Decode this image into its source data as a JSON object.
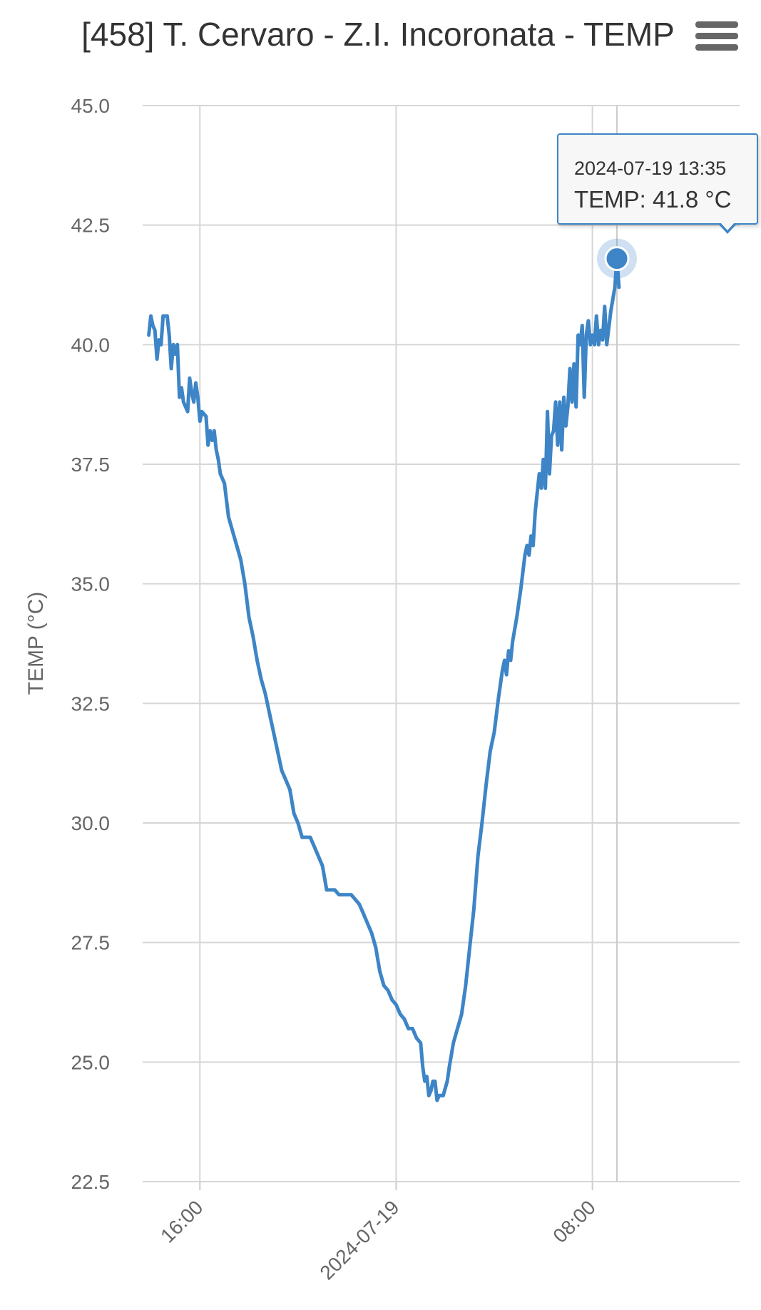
{
  "chart_data": {
    "type": "line",
    "title": "[458] T. Cervaro - Z.I. Incoronata - TEMP",
    "xlabel": "",
    "ylabel": "TEMP (°C)",
    "ylim": [
      22.5,
      45.0
    ],
    "y_ticks": [
      "45.0",
      "42.5",
      "40.0",
      "37.5",
      "35.0",
      "32.5",
      "30.0",
      "27.5",
      "25.0",
      "22.5"
    ],
    "x_ticks": [
      {
        "label": "16:00",
        "x": "2024-07-18 16:00"
      },
      {
        "label": "2024-07-19",
        "x": "2024-07-19 00:00"
      },
      {
        "label": "08:00",
        "x": "2024-07-19 08:00"
      }
    ],
    "xlim": [
      "2024-07-18 13:40",
      "2024-07-19 14:00"
    ],
    "grid": true,
    "legend": "none",
    "series": [
      {
        "color": "#3d85c6",
        "points": [
          [
            "2024-07-18 13:55",
            40.2
          ],
          [
            "2024-07-18 14:00",
            40.6
          ],
          [
            "2024-07-18 14:05",
            40.4
          ],
          [
            "2024-07-18 14:10",
            40.3
          ],
          [
            "2024-07-18 14:15",
            39.7
          ],
          [
            "2024-07-18 14:20",
            40.1
          ],
          [
            "2024-07-18 14:25",
            40.0
          ],
          [
            "2024-07-18 14:30",
            40.6
          ],
          [
            "2024-07-18 14:40",
            40.6
          ],
          [
            "2024-07-18 14:45",
            40.2
          ],
          [
            "2024-07-18 14:50",
            39.5
          ],
          [
            "2024-07-18 14:55",
            40.0
          ],
          [
            "2024-07-18 15:00",
            39.8
          ],
          [
            "2024-07-18 15:05",
            40.0
          ],
          [
            "2024-07-18 15:10",
            38.9
          ],
          [
            "2024-07-18 15:15",
            39.1
          ],
          [
            "2024-07-18 15:20",
            38.8
          ],
          [
            "2024-07-18 15:30",
            38.6
          ],
          [
            "2024-07-18 15:35",
            39.3
          ],
          [
            "2024-07-18 15:40",
            39.0
          ],
          [
            "2024-07-18 15:45",
            38.8
          ],
          [
            "2024-07-18 15:50",
            39.2
          ],
          [
            "2024-07-18 15:55",
            38.9
          ],
          [
            "2024-07-18 16:00",
            38.4
          ],
          [
            "2024-07-18 16:05",
            38.6
          ],
          [
            "2024-07-18 16:15",
            38.5
          ],
          [
            "2024-07-18 16:20",
            37.9
          ],
          [
            "2024-07-18 16:25",
            38.2
          ],
          [
            "2024-07-18 16:30",
            38.0
          ],
          [
            "2024-07-18 16:35",
            38.2
          ],
          [
            "2024-07-18 16:40",
            37.8
          ],
          [
            "2024-07-18 16:45",
            37.6
          ],
          [
            "2024-07-18 16:50",
            37.3
          ],
          [
            "2024-07-18 17:00",
            37.1
          ],
          [
            "2024-07-18 17:10",
            36.4
          ],
          [
            "2024-07-18 17:20",
            36.1
          ],
          [
            "2024-07-18 17:30",
            35.8
          ],
          [
            "2024-07-18 17:40",
            35.5
          ],
          [
            "2024-07-18 17:50",
            35.0
          ],
          [
            "2024-07-18 18:00",
            34.3
          ],
          [
            "2024-07-18 18:10",
            33.9
          ],
          [
            "2024-07-18 18:20",
            33.4
          ],
          [
            "2024-07-18 18:30",
            33.0
          ],
          [
            "2024-07-18 18:40",
            32.7
          ],
          [
            "2024-07-18 18:50",
            32.3
          ],
          [
            "2024-07-18 19:00",
            31.9
          ],
          [
            "2024-07-18 19:10",
            31.5
          ],
          [
            "2024-07-18 19:20",
            31.1
          ],
          [
            "2024-07-18 19:30",
            30.9
          ],
          [
            "2024-07-18 19:40",
            30.7
          ],
          [
            "2024-07-18 19:50",
            30.2
          ],
          [
            "2024-07-18 20:00",
            30.0
          ],
          [
            "2024-07-18 20:10",
            29.7
          ],
          [
            "2024-07-18 20:30",
            29.7
          ],
          [
            "2024-07-18 20:40",
            29.5
          ],
          [
            "2024-07-18 20:50",
            29.3
          ],
          [
            "2024-07-18 21:00",
            29.1
          ],
          [
            "2024-07-18 21:10",
            28.6
          ],
          [
            "2024-07-18 21:30",
            28.6
          ],
          [
            "2024-07-18 21:40",
            28.5
          ],
          [
            "2024-07-18 22:10",
            28.5
          ],
          [
            "2024-07-18 22:20",
            28.4
          ],
          [
            "2024-07-18 22:30",
            28.3
          ],
          [
            "2024-07-18 22:40",
            28.1
          ],
          [
            "2024-07-18 22:50",
            27.9
          ],
          [
            "2024-07-18 23:00",
            27.7
          ],
          [
            "2024-07-18 23:10",
            27.4
          ],
          [
            "2024-07-18 23:20",
            26.9
          ],
          [
            "2024-07-18 23:30",
            26.6
          ],
          [
            "2024-07-18 23:40",
            26.5
          ],
          [
            "2024-07-18 23:50",
            26.3
          ],
          [
            "2024-07-19 00:00",
            26.2
          ],
          [
            "2024-07-19 00:10",
            26.0
          ],
          [
            "2024-07-19 00:20",
            25.9
          ],
          [
            "2024-07-19 00:30",
            25.7
          ],
          [
            "2024-07-19 00:40",
            25.7
          ],
          [
            "2024-07-19 00:50",
            25.5
          ],
          [
            "2024-07-19 01:00",
            25.4
          ],
          [
            "2024-07-19 01:05",
            24.9
          ],
          [
            "2024-07-19 01:10",
            24.6
          ],
          [
            "2024-07-19 01:15",
            24.7
          ],
          [
            "2024-07-19 01:20",
            24.3
          ],
          [
            "2024-07-19 01:25",
            24.4
          ],
          [
            "2024-07-19 01:30",
            24.6
          ],
          [
            "2024-07-19 01:35",
            24.6
          ],
          [
            "2024-07-19 01:40",
            24.2
          ],
          [
            "2024-07-19 01:45",
            24.3
          ],
          [
            "2024-07-19 01:55",
            24.3
          ],
          [
            "2024-07-19 02:05",
            24.6
          ],
          [
            "2024-07-19 02:10",
            24.9
          ],
          [
            "2024-07-19 02:20",
            25.4
          ],
          [
            "2024-07-19 02:30",
            25.7
          ],
          [
            "2024-07-19 02:40",
            26.0
          ],
          [
            "2024-07-19 02:50",
            26.6
          ],
          [
            "2024-07-19 03:00",
            27.4
          ],
          [
            "2024-07-19 03:10",
            28.2
          ],
          [
            "2024-07-19 03:20",
            29.3
          ],
          [
            "2024-07-19 03:30",
            30.0
          ],
          [
            "2024-07-19 03:40",
            30.8
          ],
          [
            "2024-07-19 03:50",
            31.5
          ],
          [
            "2024-07-19 04:00",
            31.9
          ],
          [
            "2024-07-19 04:10",
            32.6
          ],
          [
            "2024-07-19 04:20",
            33.2
          ],
          [
            "2024-07-19 04:25",
            33.4
          ],
          [
            "2024-07-19 04:30",
            33.1
          ],
          [
            "2024-07-19 04:35",
            33.6
          ],
          [
            "2024-07-19 04:40",
            33.4
          ],
          [
            "2024-07-19 04:45",
            33.8
          ],
          [
            "2024-07-19 04:55",
            34.3
          ],
          [
            "2024-07-19 05:05",
            34.9
          ],
          [
            "2024-07-19 05:15",
            35.6
          ],
          [
            "2024-07-19 05:20",
            35.8
          ],
          [
            "2024-07-19 05:25",
            35.6
          ],
          [
            "2024-07-19 05:30",
            36.0
          ],
          [
            "2024-07-19 05:35",
            35.8
          ],
          [
            "2024-07-19 05:40",
            36.5
          ],
          [
            "2024-07-19 05:45",
            36.9
          ],
          [
            "2024-07-19 05:50",
            37.3
          ],
          [
            "2024-07-19 05:55",
            37.0
          ],
          [
            "2024-07-19 06:00",
            37.6
          ],
          [
            "2024-07-19 06:05",
            37.0
          ],
          [
            "2024-07-19 06:10",
            38.6
          ],
          [
            "2024-07-19 06:15",
            37.3
          ],
          [
            "2024-07-19 06:20",
            38.1
          ],
          [
            "2024-07-19 06:25",
            38.2
          ],
          [
            "2024-07-19 06:30",
            38.8
          ],
          [
            "2024-07-19 06:35",
            37.9
          ],
          [
            "2024-07-19 06:40",
            38.8
          ],
          [
            "2024-07-19 06:45",
            37.8
          ],
          [
            "2024-07-19 06:50",
            38.9
          ],
          [
            "2024-07-19 06:55",
            38.3
          ],
          [
            "2024-07-19 07:00",
            38.7
          ],
          [
            "2024-07-19 07:05",
            39.5
          ],
          [
            "2024-07-19 07:10",
            38.8
          ],
          [
            "2024-07-19 07:15",
            39.6
          ],
          [
            "2024-07-19 07:20",
            38.7
          ],
          [
            "2024-07-19 07:25",
            40.2
          ],
          [
            "2024-07-19 07:30",
            40.0
          ],
          [
            "2024-07-19 07:35",
            40.4
          ],
          [
            "2024-07-19 07:40",
            38.9
          ],
          [
            "2024-07-19 07:45",
            40.2
          ],
          [
            "2024-07-19 07:50",
            40.5
          ],
          [
            "2024-07-19 07:55",
            40.0
          ],
          [
            "2024-07-19 08:00",
            40.2
          ],
          [
            "2024-07-19 08:05",
            40.0
          ],
          [
            "2024-07-19 08:10",
            40.6
          ],
          [
            "2024-07-19 08:15",
            40.0
          ],
          [
            "2024-07-19 08:20",
            40.3
          ],
          [
            "2024-07-19 08:25",
            40.1
          ],
          [
            "2024-07-19 08:30",
            40.8
          ],
          [
            "2024-07-19 08:35",
            40.0
          ],
          [
            "2024-07-19 08:45",
            40.7
          ],
          [
            "2024-07-19 08:55",
            41.2
          ],
          [
            "2024-07-19 09:00",
            41.8
          ],
          [
            "2024-07-19 09:05",
            41.2
          ]
        ]
      }
    ],
    "tooltip": {
      "date": "2024-07-19 13:35",
      "value_label": "TEMP: 41.8 °C",
      "x": "2024-07-19 09:00",
      "y": 41.8
    }
  }
}
